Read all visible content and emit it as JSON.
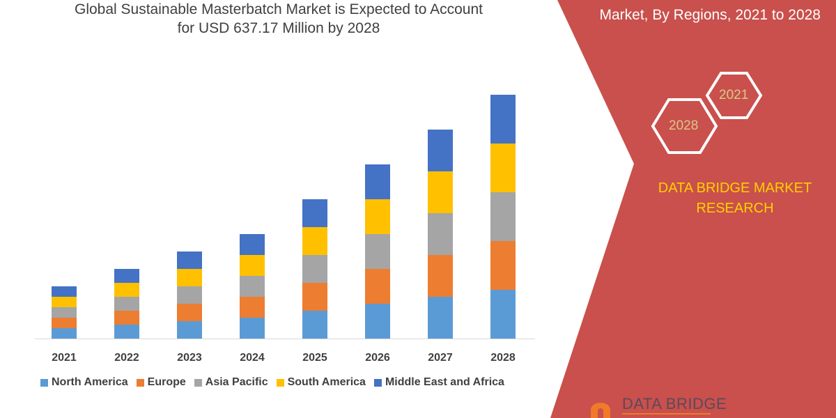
{
  "header": {
    "title_line1": "Global Sustainable Masterbatch Market is Expected to Account",
    "title_line2": "for USD 637.17 Million by 2028",
    "subtitle": "Market, By Regions, 2021 to 2028"
  },
  "side_panel": {
    "hex_years": [
      "2021",
      "2028"
    ],
    "brand_line1": "DATA BRIDGE MARKET",
    "brand_line2": "RESEARCH",
    "logo_text": "DATA BRIDGE",
    "panel_color": "#c9504c",
    "brand_color": "#ffd000"
  },
  "chart_data": {
    "type": "bar",
    "stacked": true,
    "title": "Global Sustainable Masterbatch Market is Expected to Account for USD 637.17 Million by 2028",
    "categories": [
      "2021",
      "2022",
      "2023",
      "2024",
      "2025",
      "2026",
      "2027",
      "2028"
    ],
    "series": [
      {
        "name": "North America",
        "color": "#5b9bd5",
        "values": [
          15,
          20,
          25,
          30,
          40,
          50,
          60,
          70
        ]
      },
      {
        "name": "Europe",
        "color": "#ed7d31",
        "values": [
          15,
          20,
          25,
          30,
          40,
          50,
          60,
          70
        ]
      },
      {
        "name": "Asia Pacific",
        "color": "#a5a5a5",
        "values": [
          15,
          20,
          25,
          30,
          40,
          50,
          60,
          70
        ]
      },
      {
        "name": "South America",
        "color": "#ffc000",
        "values": [
          15,
          20,
          25,
          30,
          40,
          50,
          60,
          70
        ]
      },
      {
        "name": "Middle East and Africa",
        "color": "#4472c4",
        "values": [
          15,
          20,
          25,
          30,
          40,
          50,
          60,
          70
        ]
      }
    ],
    "xlabel": "",
    "ylabel": "",
    "y_axis_shown": false,
    "grid": false,
    "legend": "bottom"
  }
}
